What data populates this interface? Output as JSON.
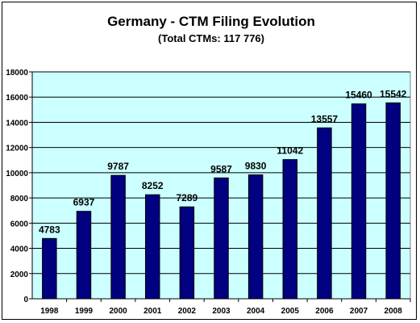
{
  "chart_data": {
    "type": "bar",
    "title": "Germany - CTM Filing Evolution",
    "subtitle": "(Total CTMs: 117 776)",
    "categories": [
      "1998",
      "1999",
      "2000",
      "2001",
      "2002",
      "2003",
      "2004",
      "2005",
      "2006",
      "2007",
      "2008"
    ],
    "values": [
      4783,
      6937,
      9787,
      8252,
      7289,
      9587,
      9830,
      11042,
      13557,
      15460,
      15542
    ],
    "data_labels": [
      "4783",
      "6937",
      "9787",
      "8252",
      "7289",
      "9587",
      "9830",
      "11042",
      "13557",
      "15460",
      "15542"
    ],
    "y_ticks": [
      "0",
      "2000",
      "4000",
      "6000",
      "8000",
      "10000",
      "12000",
      "14000",
      "16000",
      "18000"
    ],
    "y_tick_values": [
      0,
      2000,
      4000,
      6000,
      8000,
      10000,
      12000,
      14000,
      16000,
      18000
    ],
    "ylim": [
      0,
      18000
    ],
    "xlabel": "",
    "ylabel": "",
    "grid": true,
    "legend": false,
    "colors": {
      "bar": "#000080",
      "plot_background": "#ccffff",
      "gridline": "#000000"
    }
  }
}
